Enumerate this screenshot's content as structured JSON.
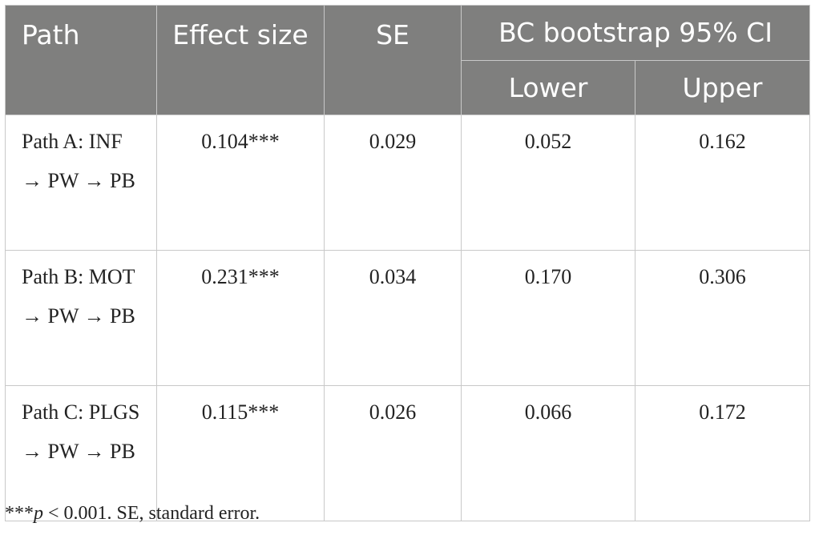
{
  "header": {
    "path": "Path",
    "effect_size": "Effect size",
    "se": "SE",
    "ci_group": "BC bootstrap 95% CI",
    "lower": "Lower",
    "upper": "Upper"
  },
  "rows": [
    {
      "path": "Path A: INF → PW → PB",
      "effect": "0.104***",
      "se": "0.029",
      "lower": "0.052",
      "upper": "0.162"
    },
    {
      "path": "Path B: MOT → PW → PB",
      "effect": "0.231***",
      "se": "0.034",
      "lower": "0.170",
      "upper": "0.306"
    },
    {
      "path": "Path C: PLGS → PW → PB",
      "effect": "0.115***",
      "se": "0.026",
      "lower": "0.066",
      "upper": "0.172"
    }
  ],
  "note": {
    "stars": "***",
    "p": "p",
    "rest": " < 0.001. SE, standard error."
  }
}
